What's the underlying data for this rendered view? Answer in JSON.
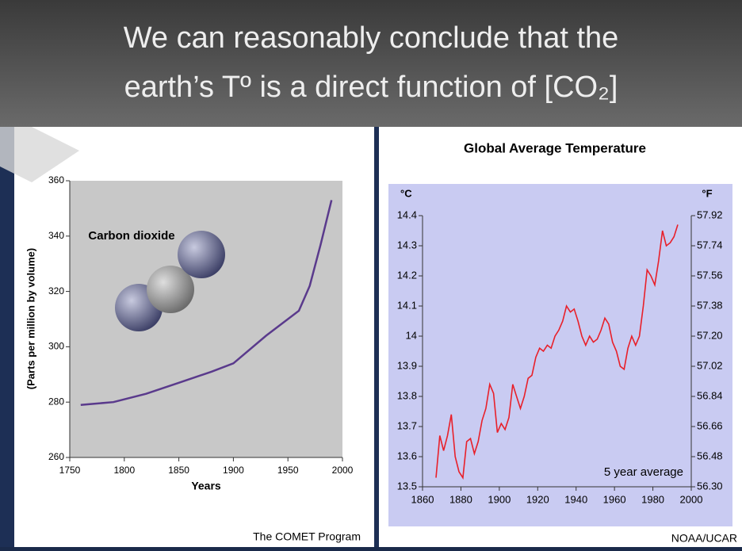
{
  "slide": {
    "title": [
      "We can reasonably conclude that the",
      "earth’s Tº  is a direct function of [CO₂]"
    ]
  },
  "chart_data": [
    {
      "type": "line",
      "y_label": "(Parts per million by volume)",
      "x_label": "Years",
      "annotation": "Carbon dioxide",
      "credit": "The COMET Program",
      "x": [
        1760,
        1790,
        1820,
        1850,
        1880,
        1900,
        1930,
        1960,
        1970,
        1980,
        1990
      ],
      "values": [
        279,
        280,
        283,
        287,
        291,
        294,
        304,
        313,
        322,
        337,
        353
      ],
      "color": "#5a3a8c",
      "xlim": [
        1750,
        2000
      ],
      "xticks": [
        1750,
        1800,
        1850,
        1900,
        1950,
        2000
      ],
      "ylim": [
        260,
        360
      ],
      "yticks": [
        260,
        280,
        300,
        320,
        340,
        360
      ]
    },
    {
      "type": "line",
      "title": "Global Average Temperature",
      "y_label": "°C",
      "y2_label": "°F",
      "annotation": "5 year average",
      "credit": "NOAA/UCAR",
      "x": [
        1867,
        1869,
        1871,
        1873,
        1875,
        1877,
        1879,
        1881,
        1883,
        1885,
        1887,
        1889,
        1891,
        1893,
        1895,
        1897,
        1899,
        1901,
        1903,
        1905,
        1907,
        1909,
        1911,
        1913,
        1915,
        1917,
        1919,
        1921,
        1923,
        1925,
        1927,
        1929,
        1931,
        1933,
        1935,
        1937,
        1939,
        1941,
        1943,
        1945,
        1947,
        1949,
        1951,
        1953,
        1955,
        1957,
        1959,
        1961,
        1963,
        1965,
        1967,
        1969,
        1971,
        1973,
        1975,
        1977,
        1979,
        1981,
        1983,
        1985,
        1987,
        1989,
        1991,
        1993
      ],
      "values": [
        13.53,
        13.67,
        13.62,
        13.67,
        13.74,
        13.6,
        13.55,
        13.53,
        13.65,
        13.66,
        13.61,
        13.65,
        13.72,
        13.76,
        13.84,
        13.81,
        13.68,
        13.71,
        13.69,
        13.73,
        13.84,
        13.8,
        13.76,
        13.8,
        13.86,
        13.87,
        13.93,
        13.96,
        13.95,
        13.97,
        13.96,
        14.0,
        14.02,
        14.05,
        14.1,
        14.08,
        14.09,
        14.05,
        14.0,
        13.97,
        14.0,
        13.98,
        13.99,
        14.02,
        14.06,
        14.04,
        13.98,
        13.95,
        13.9,
        13.89,
        13.96,
        14.0,
        13.97,
        14.0,
        14.1,
        14.22,
        14.2,
        14.17,
        14.25,
        14.35,
        14.3,
        14.31,
        14.33,
        14.37
      ],
      "color": "#e8202a",
      "xlim": [
        1860,
        2000
      ],
      "xticks": [
        1860,
        1880,
        1900,
        1920,
        1940,
        1960,
        1980,
        2000
      ],
      "ylim": [
        13.5,
        14.4
      ],
      "yticks": [
        13.5,
        13.6,
        13.7,
        13.8,
        13.9,
        14.0,
        14.1,
        14.2,
        14.3,
        14.4
      ],
      "y2lim": [
        56.3,
        57.92
      ],
      "y2ticks": [
        {
          "value": 56.3,
          "label": "56.30"
        },
        56.48,
        56.66,
        56.84,
        57.02,
        {
          "value": 57.2,
          "label": "57.20"
        },
        57.38,
        57.56,
        57.74,
        57.92
      ]
    }
  ]
}
